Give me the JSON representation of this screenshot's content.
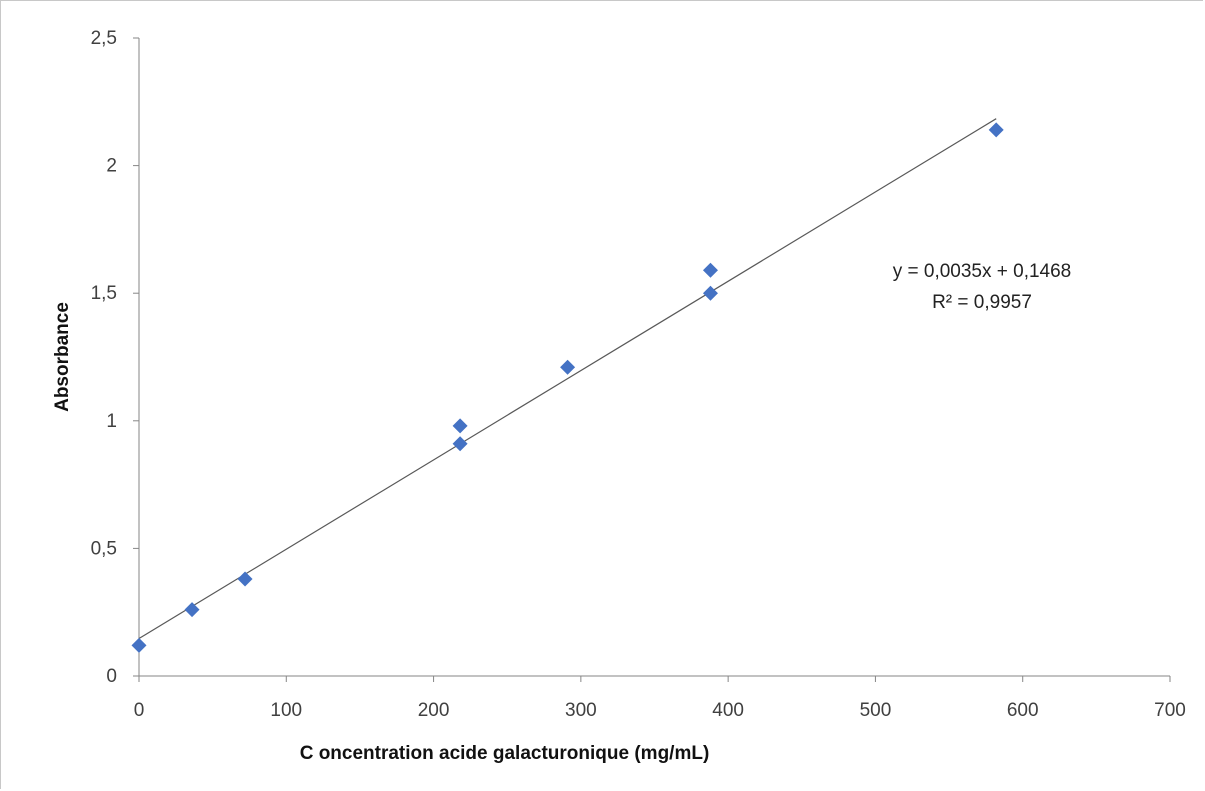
{
  "chart_data": {
    "type": "scatter",
    "title": "",
    "xlabel": "C oncentration acide galacturonique (mg/mL)",
    "ylabel": "Absorbance",
    "xlim": [
      0,
      700
    ],
    "ylim": [
      0,
      2.5
    ],
    "x_ticks": [
      0,
      100,
      200,
      300,
      400,
      500,
      600,
      700
    ],
    "x_tick_labels": [
      "0",
      "100",
      "200",
      "300",
      "400",
      "500",
      "600",
      "700"
    ],
    "y_ticks": [
      0,
      0.5,
      1,
      1.5,
      2,
      2.5
    ],
    "y_tick_labels": [
      "0",
      "0,5",
      "1",
      "1,5",
      "2",
      "2,5"
    ],
    "grid": false,
    "legend": "none",
    "marker": "diamond",
    "marker_color": "#4472c4",
    "series": [
      {
        "x": [
          0,
          36,
          72,
          218,
          218,
          291,
          388,
          388,
          582
        ],
        "y": [
          0.12,
          0.26,
          0.38,
          0.98,
          0.91,
          1.21,
          1.59,
          1.5,
          2.14
        ]
      }
    ],
    "trendline": {
      "slope": 0.0035,
      "intercept": 0.1468,
      "x_range": [
        0,
        582
      ],
      "color": "#595959",
      "equation": "y = 0,0035x + 0,1468",
      "r_squared": "R² = 0,9957"
    }
  }
}
